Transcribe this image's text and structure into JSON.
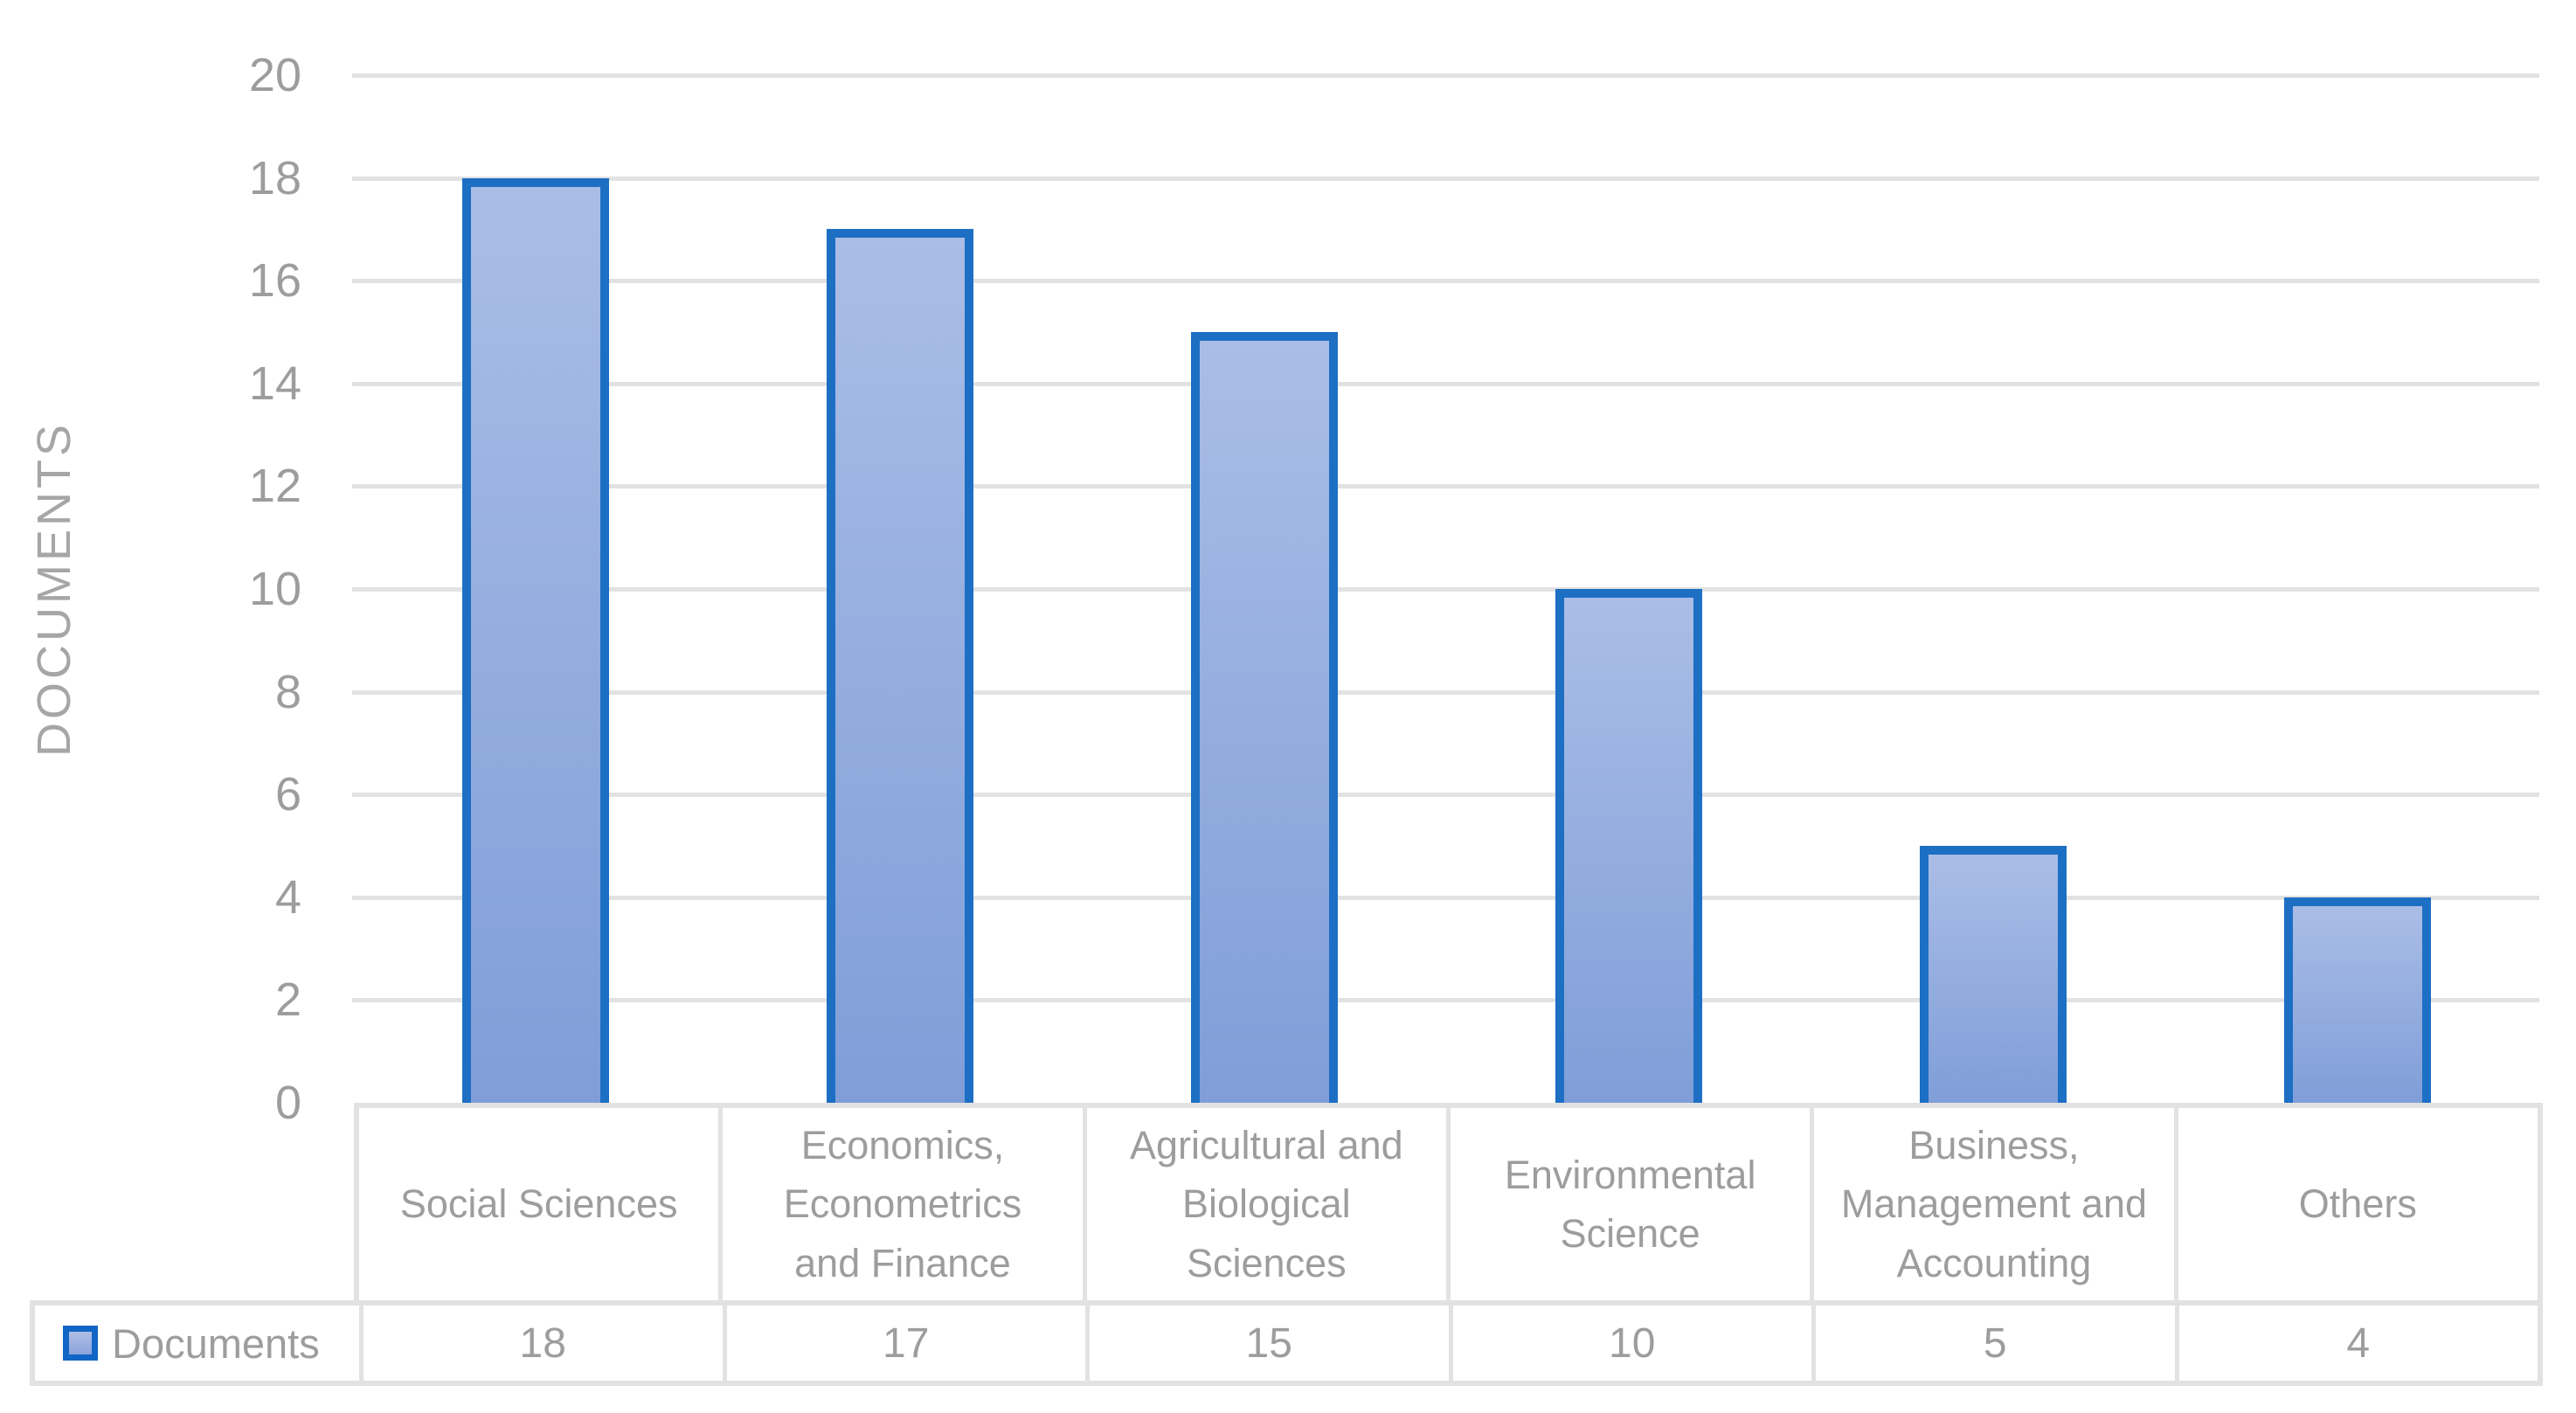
{
  "chart_data": {
    "type": "bar",
    "title": "",
    "xlabel": "",
    "ylabel": "DOCUMENTS",
    "categories": [
      "Social Sciences",
      "Economics, Econometrics and Finance",
      "Agricultural and Biological Sciences",
      "Environmental Science",
      "Business, Management and Accounting",
      "Others"
    ],
    "series": [
      {
        "name": "Documents",
        "values": [
          18,
          17,
          15,
          10,
          5,
          4
        ]
      }
    ],
    "ylim": [
      0,
      20
    ],
    "yticks": [
      0,
      2,
      4,
      6,
      8,
      10,
      12,
      14,
      16,
      18,
      20
    ],
    "grid": true,
    "legend_position": "data-table-bottom-left",
    "colors": {
      "bar_fill_top": "#aabde6",
      "bar_fill_bottom": "#7f9ed8",
      "bar_border": "#1d6fc4",
      "gridline": "#e2e2e2",
      "table_border": "#e2e2e2",
      "axis_text": "#a6a6a6",
      "tick_text": "#9d9d9d",
      "table_text": "#9d9d9d"
    }
  }
}
